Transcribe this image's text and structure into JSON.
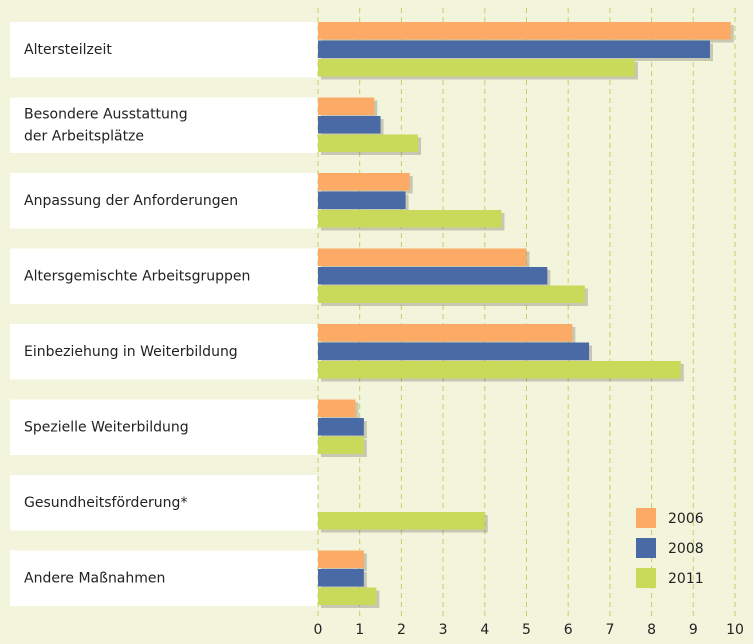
{
  "chart_data": {
    "type": "bar",
    "orientation": "horizontal",
    "categories": [
      "Altersteilzeit",
      "Besondere Ausstattung\nder Arbeitsplätze",
      "Anpassung der Anforderungen",
      "Altersgemischte Arbeitsgruppen",
      "Einbeziehung in Weiterbildung",
      "Spezielle Weiterbildung",
      "Gesundheitsförderung*",
      "Andere Maßnahmen"
    ],
    "series": [
      {
        "name": "2006",
        "color": "#fbab66",
        "values": [
          9.9,
          1.35,
          2.2,
          5.0,
          6.1,
          0.9,
          null,
          1.1
        ]
      },
      {
        "name": "2008",
        "color": "#4a6aa5",
        "values": [
          9.4,
          1.5,
          2.1,
          5.5,
          6.5,
          1.1,
          null,
          1.1
        ]
      },
      {
        "name": "2011",
        "color": "#c9da5b",
        "values": [
          7.6,
          2.4,
          4.4,
          6.4,
          8.7,
          1.1,
          4.0,
          1.4
        ]
      }
    ],
    "xlim": [
      0,
      10
    ],
    "xticks": [
      0,
      1,
      2,
      3,
      4,
      5,
      6,
      7,
      8,
      9,
      10
    ],
    "grid": true,
    "legend": "lower right"
  }
}
